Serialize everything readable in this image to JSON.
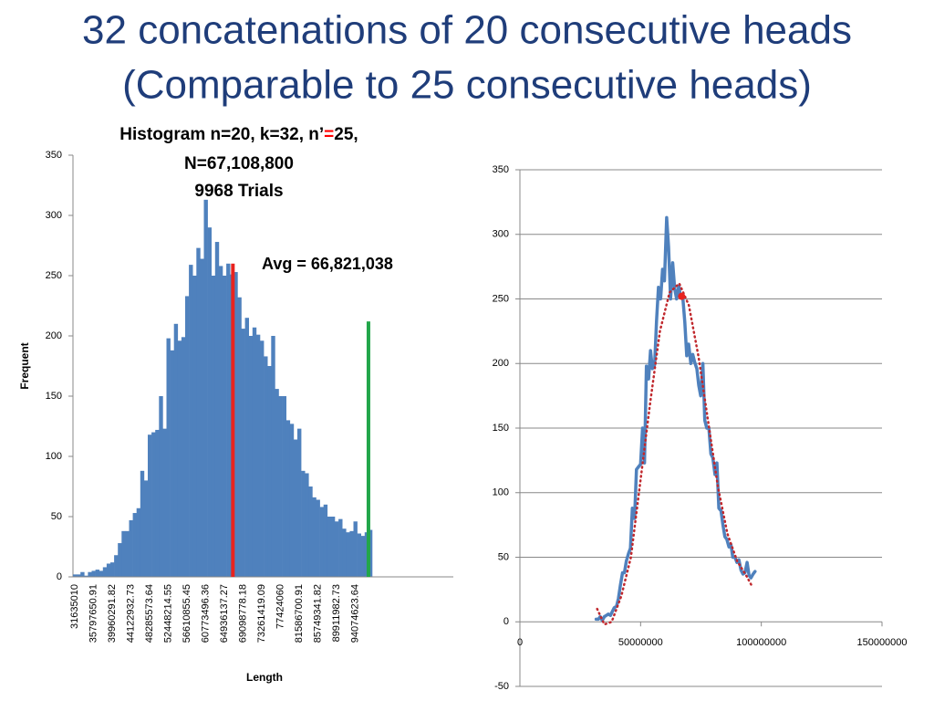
{
  "title": [
    "32 concatenations of 20 consecutive heads",
    "(Comparable to 25 consecutive heads)"
  ],
  "chart_data": [
    {
      "type": "bar",
      "title": [
        [
          "Histogram n=20, k=32, n’",
          "=",
          "25,"
        ],
        "N=67,108,800",
        "9968 Trials"
      ],
      "title_highlight_color": "#ff0000",
      "x_label": "Length",
      "y_label": "Frequent",
      "annotation": "Avg = 66,821,038",
      "color": "#4f81bd",
      "categories": [
        "31635010",
        null,
        null,
        null,
        null,
        "35797650.91",
        null,
        null,
        null,
        null,
        "39960291.82",
        null,
        null,
        null,
        null,
        "44122932.73",
        null,
        null,
        null,
        null,
        "48285573.64",
        null,
        null,
        null,
        null,
        "52448214.55",
        null,
        null,
        null,
        null,
        "56610855.45",
        null,
        null,
        null,
        null,
        "60773496.36",
        null,
        null,
        null,
        null,
        "64936137.27",
        null,
        null,
        null,
        null,
        "69098778.18",
        null,
        null,
        null,
        null,
        "73261419.09",
        null,
        null,
        null,
        null,
        "77424060",
        null,
        null,
        null,
        null,
        "81586700.91",
        null,
        null,
        null,
        null,
        "85749341.82",
        null,
        null,
        null,
        null,
        "89911982.73",
        null,
        null,
        null,
        null,
        "94074623.64",
        null,
        null,
        null,
        null
      ],
      "values": [
        2,
        2,
        4,
        1,
        4,
        5,
        6,
        5,
        8,
        11,
        12,
        18,
        28,
        38,
        38,
        47,
        53,
        57,
        88,
        80,
        118,
        120,
        122,
        150,
        123,
        198,
        188,
        210,
        196,
        199,
        233,
        259,
        250,
        273,
        264,
        313,
        290,
        250,
        278,
        258,
        250,
        260,
        251,
        253,
        232,
        206,
        215,
        200,
        207,
        201,
        196,
        183,
        175,
        200,
        156,
        150,
        150,
        130,
        127,
        114,
        123,
        88,
        86,
        75,
        66,
        64,
        58,
        60,
        50,
        50,
        46,
        48,
        40,
        37,
        38,
        46,
        36,
        34,
        37,
        39
      ],
      "markers": [
        {
          "x": 66821038,
          "value": 260,
          "color": "#e8231f"
        },
        {
          "x": 97000000,
          "value": 212,
          "color": "#22a64a"
        }
      ],
      "ylim": [
        0,
        350
      ],
      "yticks": [
        0,
        50,
        100,
        150,
        200,
        250,
        300,
        350
      ]
    },
    {
      "type": "line",
      "xlim": [
        0,
        150000000
      ],
      "xticks": [
        0,
        50000000,
        100000000,
        150000000
      ],
      "ylim": [
        -50,
        350
      ],
      "yticks": [
        -50,
        0,
        50,
        100,
        150,
        200,
        250,
        300,
        350
      ],
      "grid": true,
      "series": [
        {
          "color": "#4f81bd",
          "style": "solid",
          "x": [
            31600000,
            32500000,
            33300000,
            34100000,
            35000000,
            35800000,
            36600000,
            37500000,
            38300000,
            39100000,
            40000000,
            40800000,
            41600000,
            42500000,
            43300000,
            44100000,
            45000000,
            45800000,
            46600000,
            47500000,
            48300000,
            49100000,
            50000000,
            50800000,
            51600000,
            52400000,
            53300000,
            54100000,
            54900000,
            55800000,
            56600000,
            57400000,
            58300000,
            59100000,
            59900000,
            60800000,
            61600000,
            62400000,
            63300000,
            64100000,
            64900000,
            65800000,
            66600000,
            67400000,
            68300000,
            69100000,
            69900000,
            70800000,
            71600000,
            72400000,
            73300000,
            74100000,
            74900000,
            75800000,
            76600000,
            77400000,
            78300000,
            79100000,
            79900000,
            80800000,
            81600000,
            82400000,
            83300000,
            84100000,
            84900000,
            85700000,
            86600000,
            87400000,
            88200000,
            89100000,
            89900000,
            90700000,
            91600000,
            92400000,
            93200000,
            94100000,
            94900000,
            95700000,
            96600000,
            97400000
          ],
          "values": [
            2,
            2,
            4,
            1,
            4,
            5,
            6,
            5,
            8,
            11,
            12,
            18,
            28,
            38,
            38,
            47,
            53,
            57,
            88,
            80,
            118,
            120,
            122,
            150,
            123,
            198,
            188,
            210,
            196,
            199,
            233,
            259,
            250,
            273,
            264,
            313,
            290,
            250,
            278,
            258,
            250,
            260,
            251,
            253,
            232,
            206,
            215,
            200,
            207,
            201,
            196,
            183,
            175,
            200,
            156,
            150,
            150,
            130,
            127,
            114,
            123,
            88,
            86,
            75,
            66,
            64,
            58,
            60,
            50,
            50,
            46,
            48,
            40,
            37,
            38,
            46,
            36,
            34,
            37,
            39
          ]
        },
        {
          "color": "#c0282d",
          "style": "dotted",
          "x": [
            32000000,
            35000000,
            38000000,
            42000000,
            46000000,
            50000000,
            54000000,
            58000000,
            62000000,
            66000000,
            70000000,
            74000000,
            78000000,
            82000000,
            86000000,
            90000000,
            94000000,
            96000000
          ],
          "values": [
            10,
            -2,
            0,
            20,
            50,
            110,
            170,
            225,
            255,
            262,
            245,
            205,
            155,
            105,
            68,
            47,
            35,
            28
          ]
        },
        {
          "color": "#e8231f",
          "style": "point",
          "x": [
            67000000
          ],
          "values": [
            252
          ]
        }
      ]
    }
  ]
}
